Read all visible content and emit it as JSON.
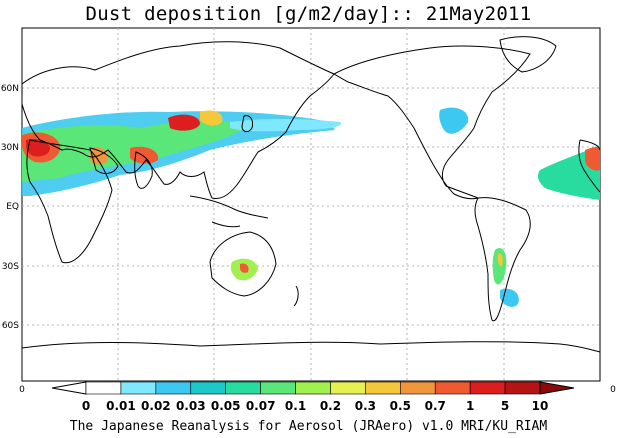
{
  "title": "Dust deposition [g/m2/day]:: 21May2011",
  "credit": "The Japanese Reanalysis for Aerosol (JRAero) v1.0 MRI/KU_RIAM",
  "lat_labels": [
    "60N",
    "30N",
    "EQ",
    "30S",
    "60S"
  ],
  "lon_axis_labels": [
    "0",
    "0"
  ],
  "colorbar": {
    "ticks": [
      "0",
      "0.01",
      "0.02",
      "0.03",
      "0.05",
      "0.07",
      "0.1",
      "0.2",
      "0.3",
      "0.5",
      "0.7",
      "1",
      "5",
      "10"
    ],
    "colors": [
      "#ffffff",
      "#7fe8ff",
      "#3cc8f0",
      "#1ec8c8",
      "#28dca0",
      "#5ae678",
      "#a0f050",
      "#e6f050",
      "#f5c83c",
      "#f0963c",
      "#f05a32",
      "#dc1e1e",
      "#b41414",
      "#8c0a0a"
    ]
  },
  "colors": {
    "land_outline": "#000000",
    "grid": "#b4b4b4"
  }
}
